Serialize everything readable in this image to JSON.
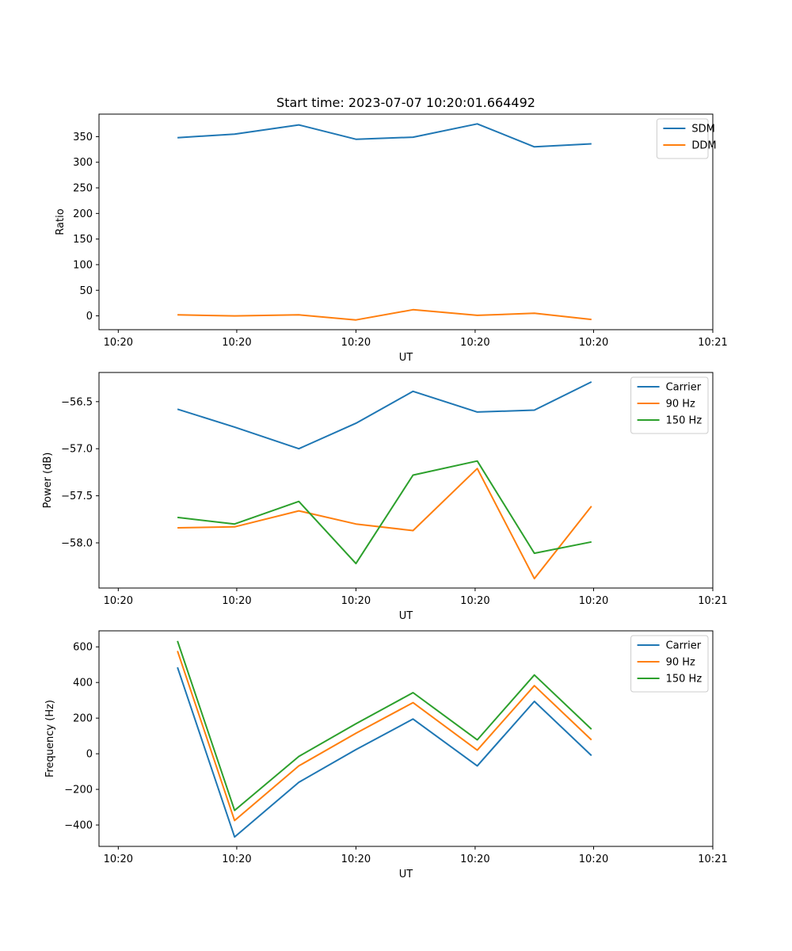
{
  "title": "Start time: 2023-07-07 10:20:01.664492",
  "chart_data": [
    {
      "type": "line",
      "title": "Start time: 2023-07-07 10:20:01.664492",
      "xlabel": "UT",
      "ylabel": "Ratio",
      "x": [
        0.25,
        0.33,
        0.42,
        0.5,
        0.58,
        0.67,
        0.75,
        0.83
      ],
      "xlim": [
        0.14,
        1.0
      ],
      "xticks": [
        0.167,
        0.333,
        0.5,
        0.667,
        0.833,
        1.0
      ],
      "xtick_labels": [
        "10:20",
        "10:20",
        "10:20",
        "10:20",
        "10:20",
        "10:21"
      ],
      "ylim": [
        -27,
        394
      ],
      "yticks": [
        0,
        50,
        100,
        150,
        200,
        250,
        300,
        350
      ],
      "ytick_labels": [
        "0",
        "50",
        "100",
        "150",
        "200",
        "250",
        "300",
        "350"
      ],
      "legend": "top-right",
      "series": [
        {
          "name": "SDM",
          "color": "#1f77b4",
          "values": [
            348,
            355,
            373,
            345,
            349,
            375,
            330,
            336
          ]
        },
        {
          "name": "DDM",
          "color": "#ff7f0e",
          "values": [
            2,
            0,
            2,
            -8,
            12,
            1,
            5,
            -7
          ]
        }
      ]
    },
    {
      "type": "line",
      "xlabel": "UT",
      "ylabel": "Power (dB)",
      "x": [
        0.25,
        0.33,
        0.42,
        0.5,
        0.58,
        0.67,
        0.75,
        0.83
      ],
      "xlim": [
        0.14,
        1.0
      ],
      "xticks": [
        0.167,
        0.333,
        0.5,
        0.667,
        0.833,
        1.0
      ],
      "xtick_labels": [
        "10:20",
        "10:20",
        "10:20",
        "10:20",
        "10:20",
        "10:21"
      ],
      "ylim": [
        -58.48,
        -56.19
      ],
      "yticks": [
        -58.0,
        -57.5,
        -57.0,
        -56.5
      ],
      "ytick_labels": [
        "−58.0",
        "−57.5",
        "−57.0",
        "−56.5"
      ],
      "legend": "top-right",
      "series": [
        {
          "name": "Carrier",
          "color": "#1f77b4",
          "values": [
            -56.58,
            -56.77,
            -57.0,
            -56.73,
            -56.39,
            -56.61,
            -56.59,
            -56.29
          ]
        },
        {
          "name": "90 Hz",
          "color": "#ff7f0e",
          "values": [
            -57.84,
            -57.83,
            -57.66,
            -57.8,
            -57.87,
            -57.21,
            -58.38,
            -57.61
          ]
        },
        {
          "name": "150 Hz",
          "color": "#2ca02c",
          "values": [
            -57.73,
            -57.8,
            -57.56,
            -58.22,
            -57.28,
            -57.13,
            -58.11,
            -57.99
          ]
        }
      ]
    },
    {
      "type": "line",
      "xlabel": "UT",
      "ylabel": "Frequency (Hz)",
      "x": [
        0.25,
        0.33,
        0.42,
        0.5,
        0.58,
        0.67,
        0.75,
        0.83
      ],
      "xlim": [
        0.14,
        1.0
      ],
      "xticks": [
        0.167,
        0.333,
        0.5,
        0.667,
        0.833,
        1.0
      ],
      "xtick_labels": [
        "10:20",
        "10:20",
        "10:20",
        "10:20",
        "10:20",
        "10:21"
      ],
      "ylim": [
        -520,
        690
      ],
      "yticks": [
        -400,
        -200,
        0,
        200,
        400,
        600
      ],
      "ytick_labels": [
        "−400",
        "−200",
        "0",
        "200",
        "400",
        "600"
      ],
      "legend": "top-right",
      "series": [
        {
          "name": "Carrier",
          "color": "#1f77b4",
          "values": [
            485,
            -467,
            -160,
            23,
            195,
            -68,
            294,
            -10
          ]
        },
        {
          "name": "90 Hz",
          "color": "#ff7f0e",
          "values": [
            577,
            -375,
            -68,
            115,
            287,
            20,
            382,
            78
          ]
        },
        {
          "name": "150 Hz",
          "color": "#2ca02c",
          "values": [
            633,
            -318,
            -15,
            168,
            343,
            78,
            442,
            138
          ]
        }
      ]
    }
  ]
}
